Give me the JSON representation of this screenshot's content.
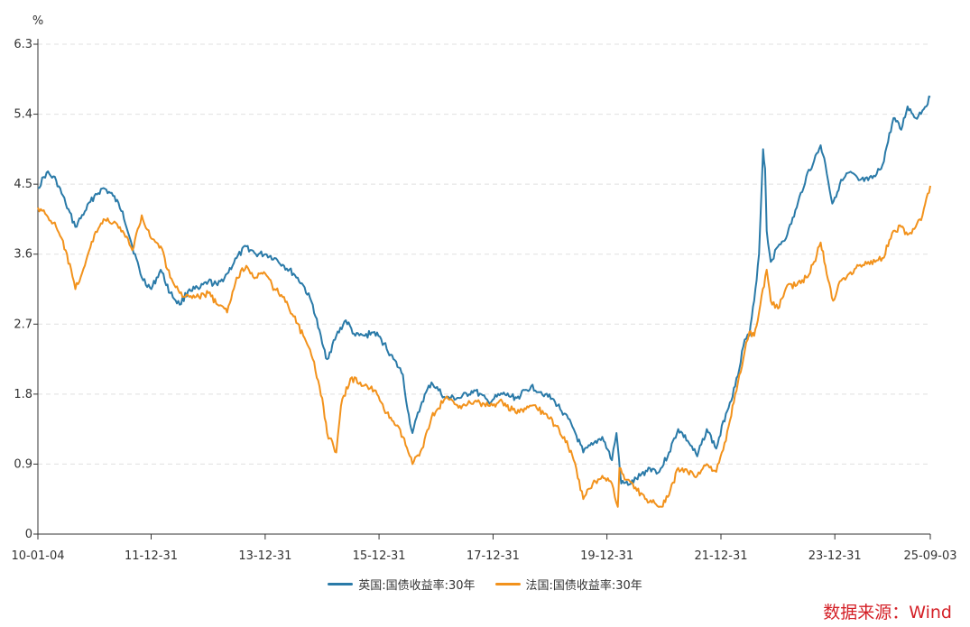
{
  "chart_data": {
    "type": "line",
    "unit": "%",
    "ylim": [
      0,
      6.3
    ],
    "y_ticks": [
      "0",
      "0.9",
      "1.8",
      "2.7",
      "3.6",
      "4.5",
      "5.4",
      "6.3"
    ],
    "x_tick_labels": [
      "10-01-04",
      "11-12-31",
      "13-12-31",
      "15-12-31",
      "17-12-31",
      "19-12-31",
      "21-12-31",
      "23-12-31",
      "25-09-03"
    ],
    "x_tick_dates": [
      "2010-01-04",
      "2011-12-31",
      "2013-12-31",
      "2015-12-31",
      "2017-12-31",
      "2019-12-31",
      "2021-12-31",
      "2023-12-31",
      "2025-09-03"
    ],
    "grid": "horizontal-dashed",
    "legend_position": "bottom",
    "series": [
      {
        "name": "英国:国债收益率:30年",
        "color": "#2a7aa8",
        "points": [
          [
            "2010-01-04",
            4.45
          ],
          [
            "2010-03-01",
            4.65
          ],
          [
            "2010-05-01",
            4.55
          ],
          [
            "2010-07-01",
            4.25
          ],
          [
            "2010-09-01",
            3.95
          ],
          [
            "2010-11-01",
            4.15
          ],
          [
            "2011-01-01",
            4.35
          ],
          [
            "2011-03-01",
            4.45
          ],
          [
            "2011-05-01",
            4.35
          ],
          [
            "2011-07-01",
            4.15
          ],
          [
            "2011-09-01",
            3.7
          ],
          [
            "2011-11-01",
            3.3
          ],
          [
            "2012-01-01",
            3.15
          ],
          [
            "2012-03-01",
            3.4
          ],
          [
            "2012-05-01",
            3.1
          ],
          [
            "2012-07-01",
            2.95
          ],
          [
            "2012-09-01",
            3.15
          ],
          [
            "2012-11-01",
            3.15
          ],
          [
            "2013-01-01",
            3.25
          ],
          [
            "2013-03-01",
            3.2
          ],
          [
            "2013-05-01",
            3.35
          ],
          [
            "2013-07-01",
            3.55
          ],
          [
            "2013-09-01",
            3.7
          ],
          [
            "2013-11-01",
            3.6
          ],
          [
            "2014-01-01",
            3.6
          ],
          [
            "2014-03-01",
            3.55
          ],
          [
            "2014-05-01",
            3.45
          ],
          [
            "2014-07-01",
            3.35
          ],
          [
            "2014-09-01",
            3.2
          ],
          [
            "2014-11-01",
            2.95
          ],
          [
            "2015-01-01",
            2.45
          ],
          [
            "2015-02-01",
            2.25
          ],
          [
            "2015-04-01",
            2.55
          ],
          [
            "2015-06-01",
            2.75
          ],
          [
            "2015-08-01",
            2.55
          ],
          [
            "2015-10-01",
            2.55
          ],
          [
            "2015-12-01",
            2.6
          ],
          [
            "2016-02-01",
            2.45
          ],
          [
            "2016-04-01",
            2.25
          ],
          [
            "2016-06-01",
            2.05
          ],
          [
            "2016-07-01",
            1.6
          ],
          [
            "2016-08-01",
            1.3
          ],
          [
            "2016-10-01",
            1.7
          ],
          [
            "2016-12-01",
            1.95
          ],
          [
            "2017-03-01",
            1.75
          ],
          [
            "2017-06-01",
            1.75
          ],
          [
            "2017-09-01",
            1.85
          ],
          [
            "2017-12-01",
            1.7
          ],
          [
            "2018-03-01",
            1.8
          ],
          [
            "2018-06-01",
            1.75
          ],
          [
            "2018-09-01",
            1.9
          ],
          [
            "2018-12-01",
            1.8
          ],
          [
            "2019-02-01",
            1.7
          ],
          [
            "2019-04-01",
            1.55
          ],
          [
            "2019-06-01",
            1.35
          ],
          [
            "2019-08-01",
            1.05
          ],
          [
            "2019-10-01",
            1.15
          ],
          [
            "2019-12-01",
            1.25
          ],
          [
            "2020-02-01",
            0.95
          ],
          [
            "2020-03-01",
            1.3
          ],
          [
            "2020-04-01",
            0.65
          ],
          [
            "2020-06-01",
            0.65
          ],
          [
            "2020-08-01",
            0.75
          ],
          [
            "2020-10-01",
            0.85
          ],
          [
            "2020-12-01",
            0.8
          ],
          [
            "2021-02-01",
            1.05
          ],
          [
            "2021-04-01",
            1.35
          ],
          [
            "2021-06-01",
            1.2
          ],
          [
            "2021-08-01",
            1.0
          ],
          [
            "2021-10-01",
            1.35
          ],
          [
            "2021-12-01",
            1.1
          ],
          [
            "2022-02-01",
            1.55
          ],
          [
            "2022-04-01",
            1.9
          ],
          [
            "2022-06-01",
            2.5
          ],
          [
            "2022-07-01",
            2.55
          ],
          [
            "2022-08-01",
            3.0
          ],
          [
            "2022-09-01",
            3.6
          ],
          [
            "2022-09-27",
            4.95
          ],
          [
            "2022-10-10",
            4.7
          ],
          [
            "2022-10-20",
            3.9
          ],
          [
            "2022-11-15",
            3.5
          ],
          [
            "2023-01-01",
            3.7
          ],
          [
            "2023-03-01",
            3.85
          ],
          [
            "2023-05-01",
            4.2
          ],
          [
            "2023-07-01",
            4.6
          ],
          [
            "2023-08-20",
            4.8
          ],
          [
            "2023-10-01",
            5.0
          ],
          [
            "2023-11-01",
            4.75
          ],
          [
            "2023-12-15",
            4.25
          ],
          [
            "2024-02-01",
            4.5
          ],
          [
            "2024-04-01",
            4.65
          ],
          [
            "2024-06-01",
            4.55
          ],
          [
            "2024-08-01",
            4.55
          ],
          [
            "2024-09-15",
            4.6
          ],
          [
            "2024-11-01",
            4.75
          ],
          [
            "2025-01-10",
            5.35
          ],
          [
            "2025-03-01",
            5.2
          ],
          [
            "2025-04-10",
            5.5
          ],
          [
            "2025-06-01",
            5.35
          ],
          [
            "2025-07-15",
            5.45
          ],
          [
            "2025-09-03",
            5.62
          ]
        ]
      },
      {
        "name": "法国:国债收益率:30年",
        "color": "#f2921c",
        "points": [
          [
            "2010-01-04",
            4.2
          ],
          [
            "2010-03-01",
            4.1
          ],
          [
            "2010-05-01",
            3.95
          ],
          [
            "2010-07-01",
            3.65
          ],
          [
            "2010-09-01",
            3.15
          ],
          [
            "2010-11-01",
            3.45
          ],
          [
            "2011-01-01",
            3.85
          ],
          [
            "2011-03-01",
            4.05
          ],
          [
            "2011-05-01",
            4.0
          ],
          [
            "2011-07-01",
            3.9
          ],
          [
            "2011-09-01",
            3.65
          ],
          [
            "2011-11-01",
            4.1
          ],
          [
            "2012-01-01",
            3.8
          ],
          [
            "2012-03-01",
            3.7
          ],
          [
            "2012-05-01",
            3.3
          ],
          [
            "2012-07-01",
            3.1
          ],
          [
            "2012-09-01",
            3.05
          ],
          [
            "2012-11-01",
            3.05
          ],
          [
            "2013-01-01",
            3.1
          ],
          [
            "2013-03-01",
            2.95
          ],
          [
            "2013-05-01",
            2.85
          ],
          [
            "2013-07-01",
            3.3
          ],
          [
            "2013-09-01",
            3.45
          ],
          [
            "2013-11-01",
            3.3
          ],
          [
            "2014-01-01",
            3.35
          ],
          [
            "2014-03-01",
            3.15
          ],
          [
            "2014-05-01",
            3.05
          ],
          [
            "2014-07-01",
            2.8
          ],
          [
            "2014-09-01",
            2.55
          ],
          [
            "2014-11-01",
            2.25
          ],
          [
            "2015-01-01",
            1.75
          ],
          [
            "2015-02-01",
            1.3
          ],
          [
            "2015-04-01",
            1.05
          ],
          [
            "2015-05-01",
            1.65
          ],
          [
            "2015-07-01",
            2.0
          ],
          [
            "2015-09-01",
            1.95
          ],
          [
            "2015-12-01",
            1.85
          ],
          [
            "2016-02-01",
            1.6
          ],
          [
            "2016-04-01",
            1.45
          ],
          [
            "2016-06-01",
            1.25
          ],
          [
            "2016-08-01",
            0.9
          ],
          [
            "2016-10-01",
            1.1
          ],
          [
            "2016-12-01",
            1.5
          ],
          [
            "2017-03-01",
            1.75
          ],
          [
            "2017-06-01",
            1.65
          ],
          [
            "2017-09-01",
            1.7
          ],
          [
            "2017-12-01",
            1.65
          ],
          [
            "2018-03-01",
            1.7
          ],
          [
            "2018-06-01",
            1.55
          ],
          [
            "2018-09-01",
            1.65
          ],
          [
            "2018-12-01",
            1.55
          ],
          [
            "2019-02-01",
            1.4
          ],
          [
            "2019-04-01",
            1.25
          ],
          [
            "2019-06-01",
            0.95
          ],
          [
            "2019-08-01",
            0.45
          ],
          [
            "2019-10-01",
            0.65
          ],
          [
            "2019-12-01",
            0.75
          ],
          [
            "2020-02-01",
            0.65
          ],
          [
            "2020-03-10",
            0.35
          ],
          [
            "2020-03-20",
            0.85
          ],
          [
            "2020-05-01",
            0.7
          ],
          [
            "2020-07-01",
            0.6
          ],
          [
            "2020-09-01",
            0.45
          ],
          [
            "2020-11-01",
            0.4
          ],
          [
            "2020-12-15",
            0.35
          ],
          [
            "2021-02-01",
            0.5
          ],
          [
            "2021-04-01",
            0.85
          ],
          [
            "2021-06-01",
            0.8
          ],
          [
            "2021-08-01",
            0.75
          ],
          [
            "2021-10-01",
            0.9
          ],
          [
            "2021-12-01",
            0.8
          ],
          [
            "2022-02-01",
            1.2
          ],
          [
            "2022-04-01",
            1.8
          ],
          [
            "2022-06-01",
            2.35
          ],
          [
            "2022-07-01",
            2.6
          ],
          [
            "2022-08-01",
            2.55
          ],
          [
            "2022-09-01",
            2.85
          ],
          [
            "2022-10-20",
            3.4
          ],
          [
            "2022-11-15",
            3.0
          ],
          [
            "2023-01-01",
            2.9
          ],
          [
            "2023-03-01",
            3.2
          ],
          [
            "2023-05-01",
            3.2
          ],
          [
            "2023-07-01",
            3.3
          ],
          [
            "2023-08-20",
            3.5
          ],
          [
            "2023-10-01",
            3.75
          ],
          [
            "2023-11-01",
            3.45
          ],
          [
            "2023-12-20",
            3.0
          ],
          [
            "2024-02-01",
            3.25
          ],
          [
            "2024-04-01",
            3.35
          ],
          [
            "2024-06-01",
            3.45
          ],
          [
            "2024-08-01",
            3.5
          ],
          [
            "2024-09-15",
            3.5
          ],
          [
            "2024-11-01",
            3.55
          ],
          [
            "2025-01-10",
            3.9
          ],
          [
            "2025-03-01",
            3.95
          ],
          [
            "2025-04-10",
            3.85
          ],
          [
            "2025-06-01",
            3.95
          ],
          [
            "2025-07-15",
            4.1
          ],
          [
            "2025-09-03",
            4.48
          ]
        ]
      }
    ]
  },
  "source": {
    "text": "数据来源：Wind",
    "color": "#d42027"
  }
}
